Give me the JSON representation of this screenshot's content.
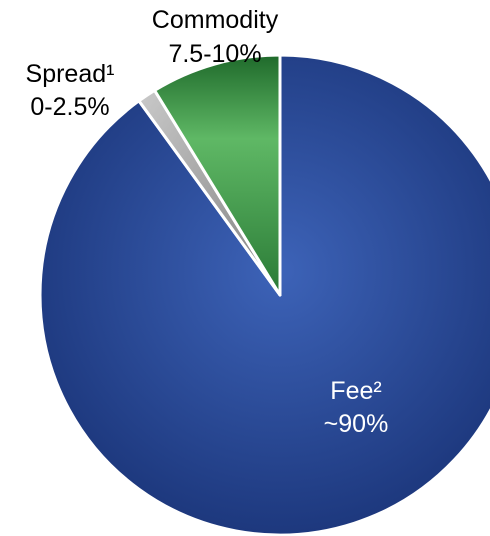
{
  "chart_data": {
    "type": "pie",
    "slices": [
      {
        "name": "Fee²",
        "label": "~90%",
        "value": 90,
        "color": "#1f3f8c"
      },
      {
        "name": "Spread¹",
        "label": "0-2.5%",
        "value": 1.25,
        "color": "#9a9a9a"
      },
      {
        "name": "Commodity",
        "label": "7.5-10%",
        "value": 8.75,
        "color": "#3f9a47"
      }
    ]
  }
}
